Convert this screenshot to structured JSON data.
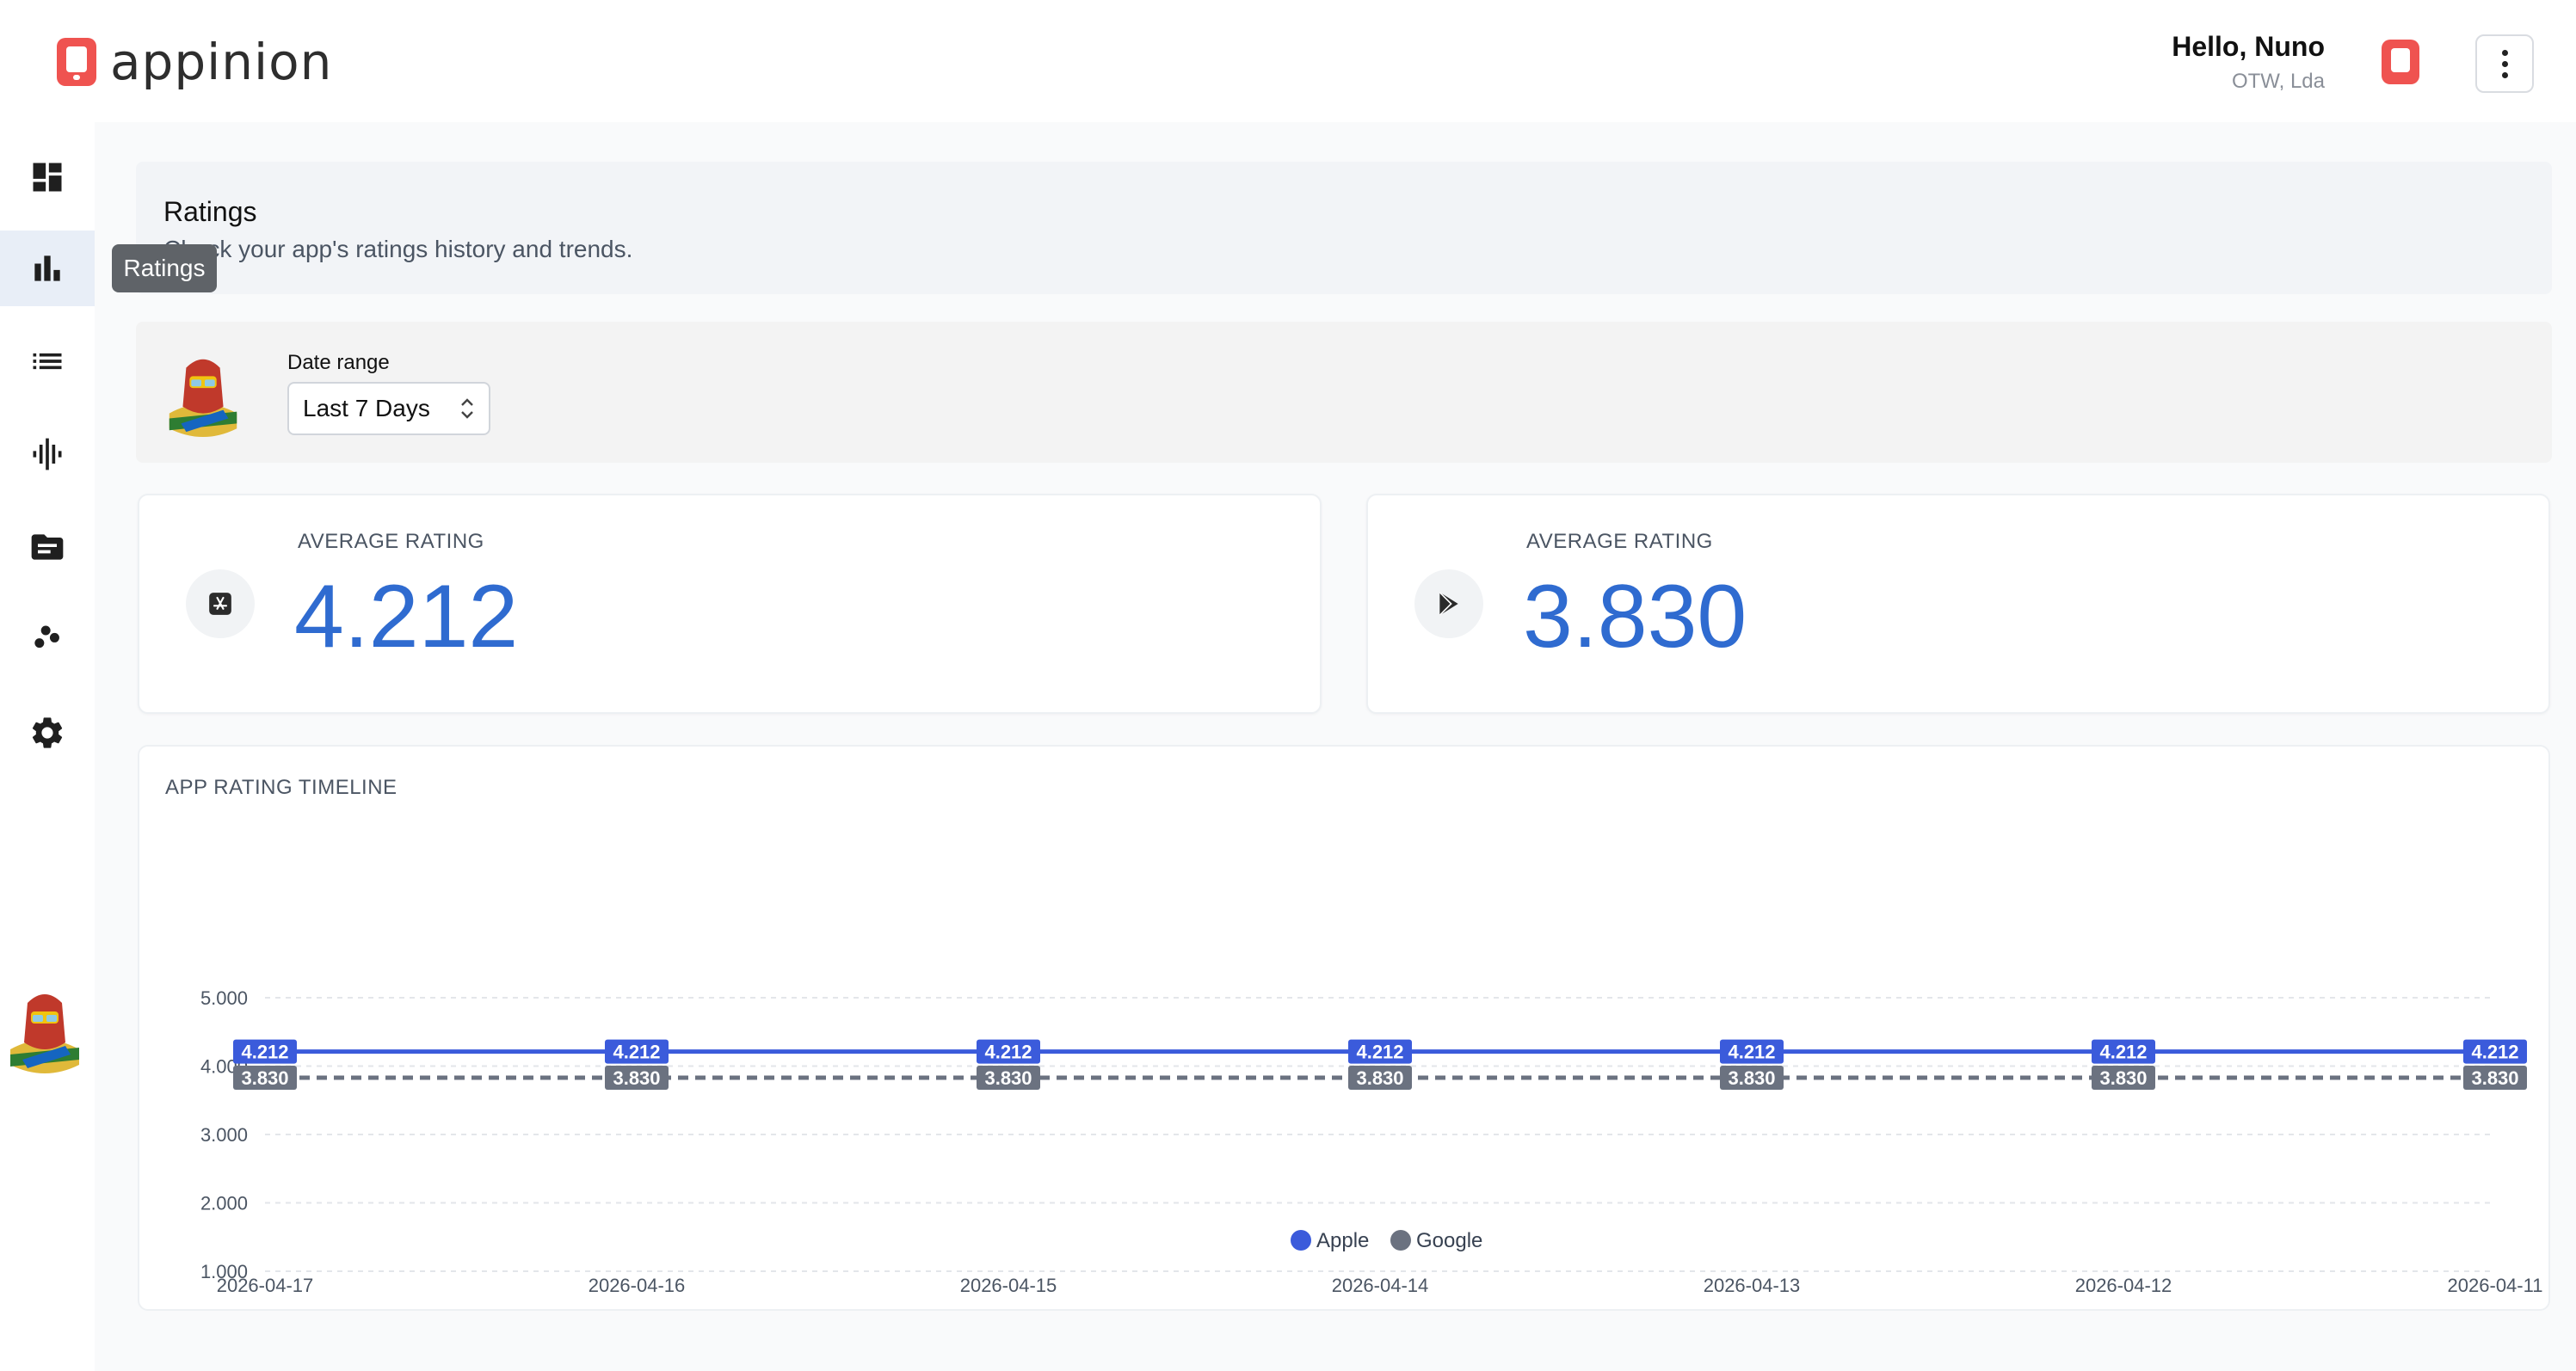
{
  "app": {
    "name": "appinion",
    "greeting": "Hello, Nuno",
    "organization": "OTW, Lda",
    "brand_color": "#ef5350"
  },
  "sidebar": {
    "items": [
      {
        "name": "dashboard",
        "icon": "dashboard-icon",
        "active": false
      },
      {
        "name": "ratings",
        "icon": "bar-chart-icon",
        "active": true
      },
      {
        "name": "reviews",
        "icon": "list-icon",
        "active": false
      },
      {
        "name": "insights",
        "icon": "waveform-icon",
        "active": false
      },
      {
        "name": "folders",
        "icon": "folder-icon",
        "active": false
      },
      {
        "name": "analysis",
        "icon": "scatter-icon",
        "active": false
      },
      {
        "name": "settings",
        "icon": "gear-icon",
        "active": false
      }
    ],
    "tooltip": "Ratings"
  },
  "page": {
    "title": "Ratings",
    "subtitle": "Check your app's ratings history and trends."
  },
  "filter": {
    "label": "Date range",
    "selected": "Last 7 Days"
  },
  "stats": [
    {
      "label": "AVERAGE RATING",
      "value": "4.212",
      "store": "apple",
      "icon": "app-store-icon"
    },
    {
      "label": "AVERAGE RATING",
      "value": "3.830",
      "store": "google",
      "icon": "play-store-icon"
    }
  ],
  "chart": {
    "title": "APP RATING TIMELINE"
  },
  "chart_data": {
    "type": "line",
    "x": [
      "2026-04-17",
      "2026-04-16",
      "2026-04-15",
      "2026-04-14",
      "2026-04-13",
      "2026-04-12",
      "2026-04-11"
    ],
    "y_ticks": [
      "5.000",
      "4.000",
      "3.000",
      "2.000",
      "1.000"
    ],
    "ylim": [
      1,
      5
    ],
    "grid": true,
    "legend_position": "bottom",
    "series": [
      {
        "name": "Apple",
        "values": [
          4.212,
          4.212,
          4.212,
          4.212,
          4.212,
          4.212,
          4.212
        ],
        "color": "#3b5bdb",
        "style": "solid"
      },
      {
        "name": "Google",
        "values": [
          3.83,
          3.83,
          3.83,
          3.83,
          3.83,
          3.83,
          3.83
        ],
        "color": "#6b7280",
        "style": "dashed"
      }
    ]
  }
}
